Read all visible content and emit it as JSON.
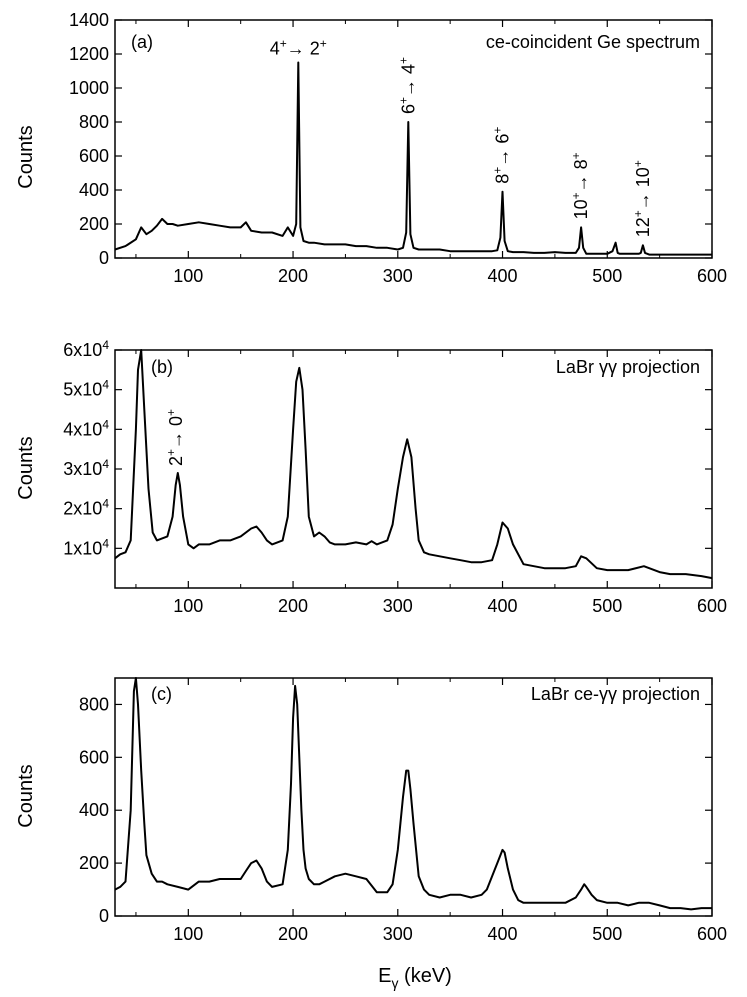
{
  "figure": {
    "xlabel_main": "E",
    "xlabel_sub": "γ",
    "xlabel_unit": " (keV)"
  },
  "chart_data": [
    {
      "type": "line",
      "panel": "(a)",
      "title": "ce-coincident Ge spectrum",
      "ylabel": "Counts",
      "xlim": [
        30,
        600
      ],
      "ylim": [
        0,
        1400
      ],
      "xticks": [
        100,
        200,
        300,
        400,
        500,
        600
      ],
      "yticks": [
        0,
        200,
        400,
        600,
        800,
        1000,
        1200,
        1400
      ],
      "ytick_labels": [
        "0",
        "200",
        "400",
        "600",
        "800",
        "1000",
        "1200",
        "1400"
      ],
      "x": [
        30,
        40,
        50,
        55,
        60,
        65,
        70,
        75,
        80,
        85,
        90,
        100,
        110,
        120,
        130,
        140,
        150,
        155,
        160,
        170,
        180,
        190,
        195,
        200,
        203,
        205,
        207,
        210,
        215,
        220,
        230,
        240,
        250,
        260,
        270,
        280,
        290,
        300,
        305,
        308,
        310,
        312,
        315,
        320,
        330,
        340,
        350,
        360,
        370,
        380,
        390,
        395,
        398,
        400,
        402,
        405,
        410,
        420,
        430,
        440,
        450,
        460,
        470,
        473,
        475,
        477,
        480,
        490,
        500,
        505,
        508,
        510,
        512,
        515,
        520,
        530,
        532,
        534,
        536,
        540,
        550,
        560,
        570,
        580,
        590,
        600
      ],
      "values": [
        50,
        70,
        110,
        180,
        140,
        160,
        190,
        230,
        200,
        200,
        190,
        200,
        210,
        200,
        190,
        180,
        180,
        210,
        160,
        150,
        150,
        130,
        180,
        130,
        200,
        1150,
        180,
        100,
        90,
        90,
        80,
        80,
        80,
        70,
        70,
        60,
        60,
        50,
        60,
        150,
        800,
        140,
        60,
        50,
        50,
        50,
        40,
        40,
        40,
        40,
        40,
        45,
        120,
        390,
        100,
        40,
        35,
        35,
        30,
        30,
        35,
        30,
        30,
        60,
        180,
        60,
        25,
        25,
        25,
        40,
        90,
        30,
        25,
        25,
        25,
        25,
        30,
        75,
        30,
        20,
        20,
        20,
        20,
        20,
        20,
        20
      ],
      "annotations": [
        {
          "label": "4⁺→ 2⁺",
          "x": 205,
          "y": 1150
        },
        {
          "label": "6⁺→ 4⁺",
          "x": 310,
          "y": 800
        },
        {
          "label": "8⁺→ 6⁺",
          "x": 400,
          "y": 390
        },
        {
          "label": "10⁺→ 8⁺",
          "x": 475,
          "y": 180
        },
        {
          "label": "12⁺→ 10⁺",
          "x": 534,
          "y": 75
        }
      ]
    },
    {
      "type": "line",
      "panel": "(b)",
      "title": "LaBr γγ projection",
      "ylabel": "Counts",
      "xlim": [
        30,
        600
      ],
      "ylim": [
        0,
        60000
      ],
      "xticks": [
        100,
        200,
        300,
        400,
        500,
        600
      ],
      "yticks": [
        10000,
        20000,
        30000,
        40000,
        50000,
        60000
      ],
      "ytick_labels": [
        "1x10⁴",
        "2x10⁴",
        "3x10⁴",
        "4x10⁴",
        "5x10⁴",
        "6x10⁴"
      ],
      "x": [
        30,
        35,
        40,
        45,
        50,
        52,
        55,
        58,
        62,
        66,
        70,
        75,
        80,
        85,
        88,
        90,
        92,
        95,
        100,
        105,
        110,
        120,
        130,
        140,
        150,
        160,
        165,
        170,
        175,
        180,
        190,
        195,
        200,
        203,
        206,
        209,
        212,
        215,
        220,
        225,
        230,
        235,
        240,
        250,
        260,
        270,
        275,
        280,
        290,
        295,
        300,
        305,
        309,
        313,
        317,
        320,
        325,
        330,
        340,
        350,
        360,
        370,
        380,
        390,
        395,
        400,
        405,
        410,
        420,
        430,
        440,
        450,
        460,
        470,
        475,
        480,
        490,
        500,
        520,
        535,
        550,
        560,
        575,
        590,
        600
      ],
      "values": [
        7500,
        8500,
        9000,
        12000,
        40000,
        55000,
        60000,
        45000,
        25000,
        14000,
        12000,
        12500,
        13000,
        18000,
        26000,
        29000,
        26000,
        18000,
        11000,
        10000,
        11000,
        11000,
        12000,
        12000,
        13000,
        15000,
        15500,
        14000,
        12000,
        11000,
        12000,
        18000,
        40000,
        52000,
        55500,
        50000,
        35000,
        18000,
        13000,
        14000,
        13000,
        11500,
        11000,
        11000,
        11500,
        11000,
        11800,
        11000,
        12000,
        16000,
        25000,
        33000,
        37500,
        33000,
        20000,
        12000,
        9000,
        8500,
        8000,
        7500,
        7000,
        6500,
        6500,
        7000,
        11000,
        16500,
        15000,
        11000,
        6000,
        5500,
        5000,
        5000,
        5000,
        5500,
        8000,
        7500,
        5000,
        4500,
        4500,
        5500,
        4000,
        3500,
        3500,
        3000,
        2500
      ]
    },
    {
      "type": "line",
      "panel": "(c)",
      "title": "LaBr ce-γγ projection",
      "ylabel": "Counts",
      "xlim": [
        30,
        600
      ],
      "ylim": [
        0,
        900
      ],
      "xticks": [
        100,
        200,
        300,
        400,
        500,
        600
      ],
      "yticks": [
        0,
        200,
        400,
        600,
        800
      ],
      "ytick_labels": [
        "0",
        "200",
        "400",
        "600",
        "800"
      ],
      "x": [
        30,
        35,
        40,
        45,
        48,
        50,
        52,
        55,
        58,
        60,
        65,
        70,
        75,
        80,
        90,
        100,
        110,
        120,
        130,
        140,
        150,
        155,
        160,
        165,
        170,
        175,
        180,
        190,
        195,
        198,
        200,
        202,
        204,
        206,
        208,
        210,
        212,
        215,
        220,
        225,
        230,
        240,
        250,
        260,
        270,
        280,
        290,
        295,
        300,
        305,
        308,
        310,
        312,
        315,
        320,
        325,
        330,
        340,
        350,
        360,
        370,
        380,
        385,
        390,
        395,
        400,
        402,
        405,
        410,
        415,
        420,
        430,
        440,
        450,
        460,
        470,
        475,
        478,
        480,
        485,
        490,
        500,
        510,
        520,
        530,
        540,
        550,
        560,
        570,
        580,
        590,
        600
      ],
      "values": [
        100,
        110,
        130,
        400,
        850,
        900,
        800,
        550,
        350,
        230,
        160,
        130,
        130,
        120,
        110,
        100,
        130,
        130,
        140,
        140,
        140,
        170,
        200,
        210,
        180,
        130,
        110,
        120,
        250,
        500,
        750,
        870,
        800,
        600,
        400,
        250,
        180,
        140,
        120,
        120,
        130,
        150,
        160,
        150,
        140,
        90,
        90,
        120,
        250,
        450,
        550,
        550,
        480,
        350,
        150,
        100,
        80,
        70,
        80,
        80,
        70,
        80,
        100,
        150,
        200,
        250,
        240,
        180,
        100,
        60,
        50,
        50,
        50,
        50,
        50,
        70,
        100,
        120,
        110,
        80,
        60,
        50,
        50,
        40,
        50,
        50,
        40,
        30,
        30,
        25,
        30,
        30
      ]
    }
  ]
}
